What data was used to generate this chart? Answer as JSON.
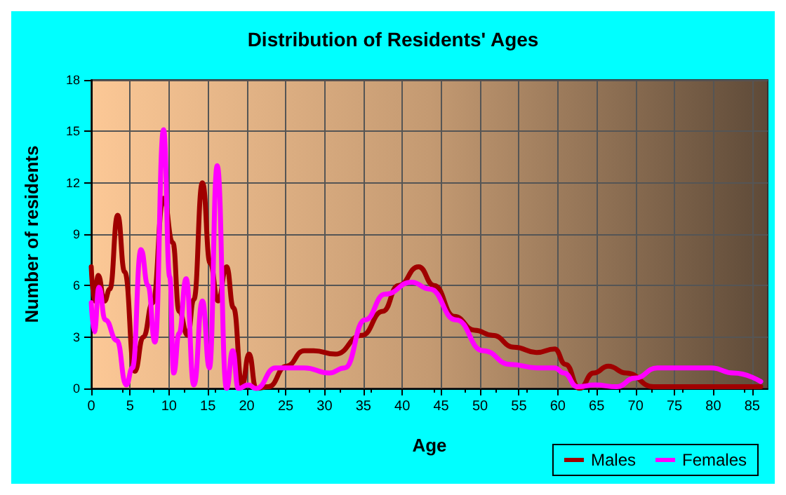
{
  "chart_data": {
    "type": "line",
    "title": "Distribution of Residents' Ages",
    "xlabel": "Age",
    "ylabel": "Number of residents",
    "xlim": [
      0,
      87
    ],
    "xticks": [
      0,
      5,
      10,
      15,
      20,
      25,
      30,
      35,
      40,
      45,
      50,
      55,
      60,
      65,
      70,
      75,
      80,
      85
    ],
    "ylim": [
      0,
      18
    ],
    "yticks": [
      0,
      3,
      6,
      9,
      12,
      15,
      18
    ],
    "grid": true,
    "legend": "bottom right",
    "marker": "none",
    "line_style": "solid",
    "series": [
      {
        "name": "Males",
        "color": "#a00000",
        "x": [
          0,
          0.4,
          0.9,
          1.7,
          2.4,
          3.4,
          4.3,
          5.6,
          6.7,
          7.9,
          9.3,
          10.5,
          11.3,
          12.4,
          13.2,
          14.3,
          15.3,
          16.3,
          17.4,
          18.3,
          19.4,
          20.3,
          21.2,
          22.8,
          25.1,
          27.4,
          28.6,
          31.4,
          34.8,
          37.5,
          39.5,
          42.1,
          44.1,
          46.7,
          49.3,
          51.6,
          54.4,
          57.3,
          59.6,
          61,
          62.8,
          64.6,
          66.5,
          68.8,
          72.3,
          76.2,
          86.1
        ],
        "values": [
          7.1,
          5.1,
          6.6,
          5.1,
          5.8,
          10.1,
          6.8,
          1,
          3,
          5,
          11.1,
          8.5,
          4.5,
          3.1,
          5.2,
          12,
          7.3,
          5.1,
          7.1,
          4.7,
          0.2,
          2,
          0,
          0.1,
          1.3,
          2.2,
          2.2,
          2,
          3.1,
          4.5,
          6,
          7.1,
          6,
          4.2,
          3.4,
          3.1,
          2.4,
          2.1,
          2.3,
          1.4,
          0,
          0.9,
          1.3,
          0.9,
          0.1,
          0.1,
          0.1
        ]
      },
      {
        "name": "Females",
        "color": "#ff00ff",
        "x": [
          0,
          0.4,
          1,
          1.8,
          3.3,
          4.5,
          5.3,
          6.4,
          7.3,
          8.2,
          9.3,
          10.1,
          10.6,
          11.3,
          12.2,
          13.2,
          14.3,
          15.2,
          16.2,
          17.4,
          18.2,
          18.9,
          20.2,
          21.2,
          23.7,
          27.4,
          30.6,
          32.6,
          35.2,
          37.8,
          41.2,
          43.5,
          46.9,
          50.4,
          53.9,
          57.3,
          59.6,
          60.8,
          62.5,
          64.8,
          67.6,
          69.9,
          72.8,
          76.8,
          79.7,
          82.6,
          86.1
        ],
        "values": [
          5,
          3.3,
          5.9,
          4,
          2.8,
          0.2,
          1.2,
          8.1,
          6,
          2.7,
          15.1,
          6.5,
          0.9,
          3.2,
          6.4,
          0.2,
          5.1,
          1.2,
          13,
          0,
          2.2,
          0,
          0.2,
          0,
          1.2,
          1.2,
          0.9,
          1.2,
          4,
          5.5,
          6.2,
          5.8,
          4,
          2.2,
          1.4,
          1.2,
          1.2,
          0.9,
          0.1,
          0.2,
          0.1,
          0.6,
          1.2,
          1.2,
          1.2,
          0.9,
          0.4
        ]
      }
    ]
  }
}
